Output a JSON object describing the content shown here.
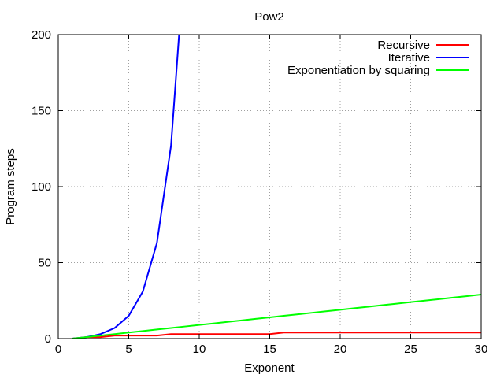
{
  "chart_data": {
    "type": "line",
    "title": "Pow2",
    "xlabel": "Exponent",
    "ylabel": "Program steps",
    "xlim": [
      0,
      30
    ],
    "ylim": [
      0,
      200
    ],
    "xticks": [
      0,
      5,
      10,
      15,
      20,
      25,
      30
    ],
    "yticks": [
      0,
      50,
      100,
      150,
      200
    ],
    "grid": true,
    "legend_position": "top-right",
    "series": [
      {
        "name": "Recursive",
        "color": "#ff0000",
        "x": [
          1,
          2,
          3,
          4,
          5,
          6,
          7,
          8,
          9,
          10,
          11,
          12,
          13,
          14,
          15,
          16,
          17,
          18,
          19,
          20,
          21,
          22,
          23,
          24,
          25,
          26,
          27,
          28,
          29,
          30
        ],
        "y": [
          0,
          1,
          1,
          2,
          2,
          2,
          2,
          3,
          3,
          3,
          3,
          3,
          3,
          3,
          3,
          4,
          4,
          4,
          4,
          4,
          4,
          4,
          4,
          4,
          4,
          4,
          4,
          4,
          4,
          4
        ]
      },
      {
        "name": "Iterative",
        "color": "#0000ff",
        "x": [
          1,
          2,
          3,
          4,
          5,
          6,
          7,
          8,
          9
        ],
        "y": [
          0,
          1,
          3,
          7,
          15,
          31,
          63,
          127,
          255
        ]
      },
      {
        "name": "Exponentiation by squaring",
        "color": "#00ff00",
        "x": [
          1,
          2,
          3,
          4,
          5,
          6,
          7,
          8,
          9,
          10,
          11,
          12,
          13,
          14,
          15,
          16,
          17,
          18,
          19,
          20,
          21,
          22,
          23,
          24,
          25,
          26,
          27,
          28,
          29,
          30
        ],
        "y": [
          0,
          1,
          2,
          3,
          4,
          5,
          6,
          7,
          8,
          9,
          10,
          11,
          12,
          13,
          14,
          15,
          16,
          17,
          18,
          19,
          20,
          21,
          22,
          23,
          24,
          25,
          26,
          27,
          28,
          29
        ]
      }
    ]
  }
}
